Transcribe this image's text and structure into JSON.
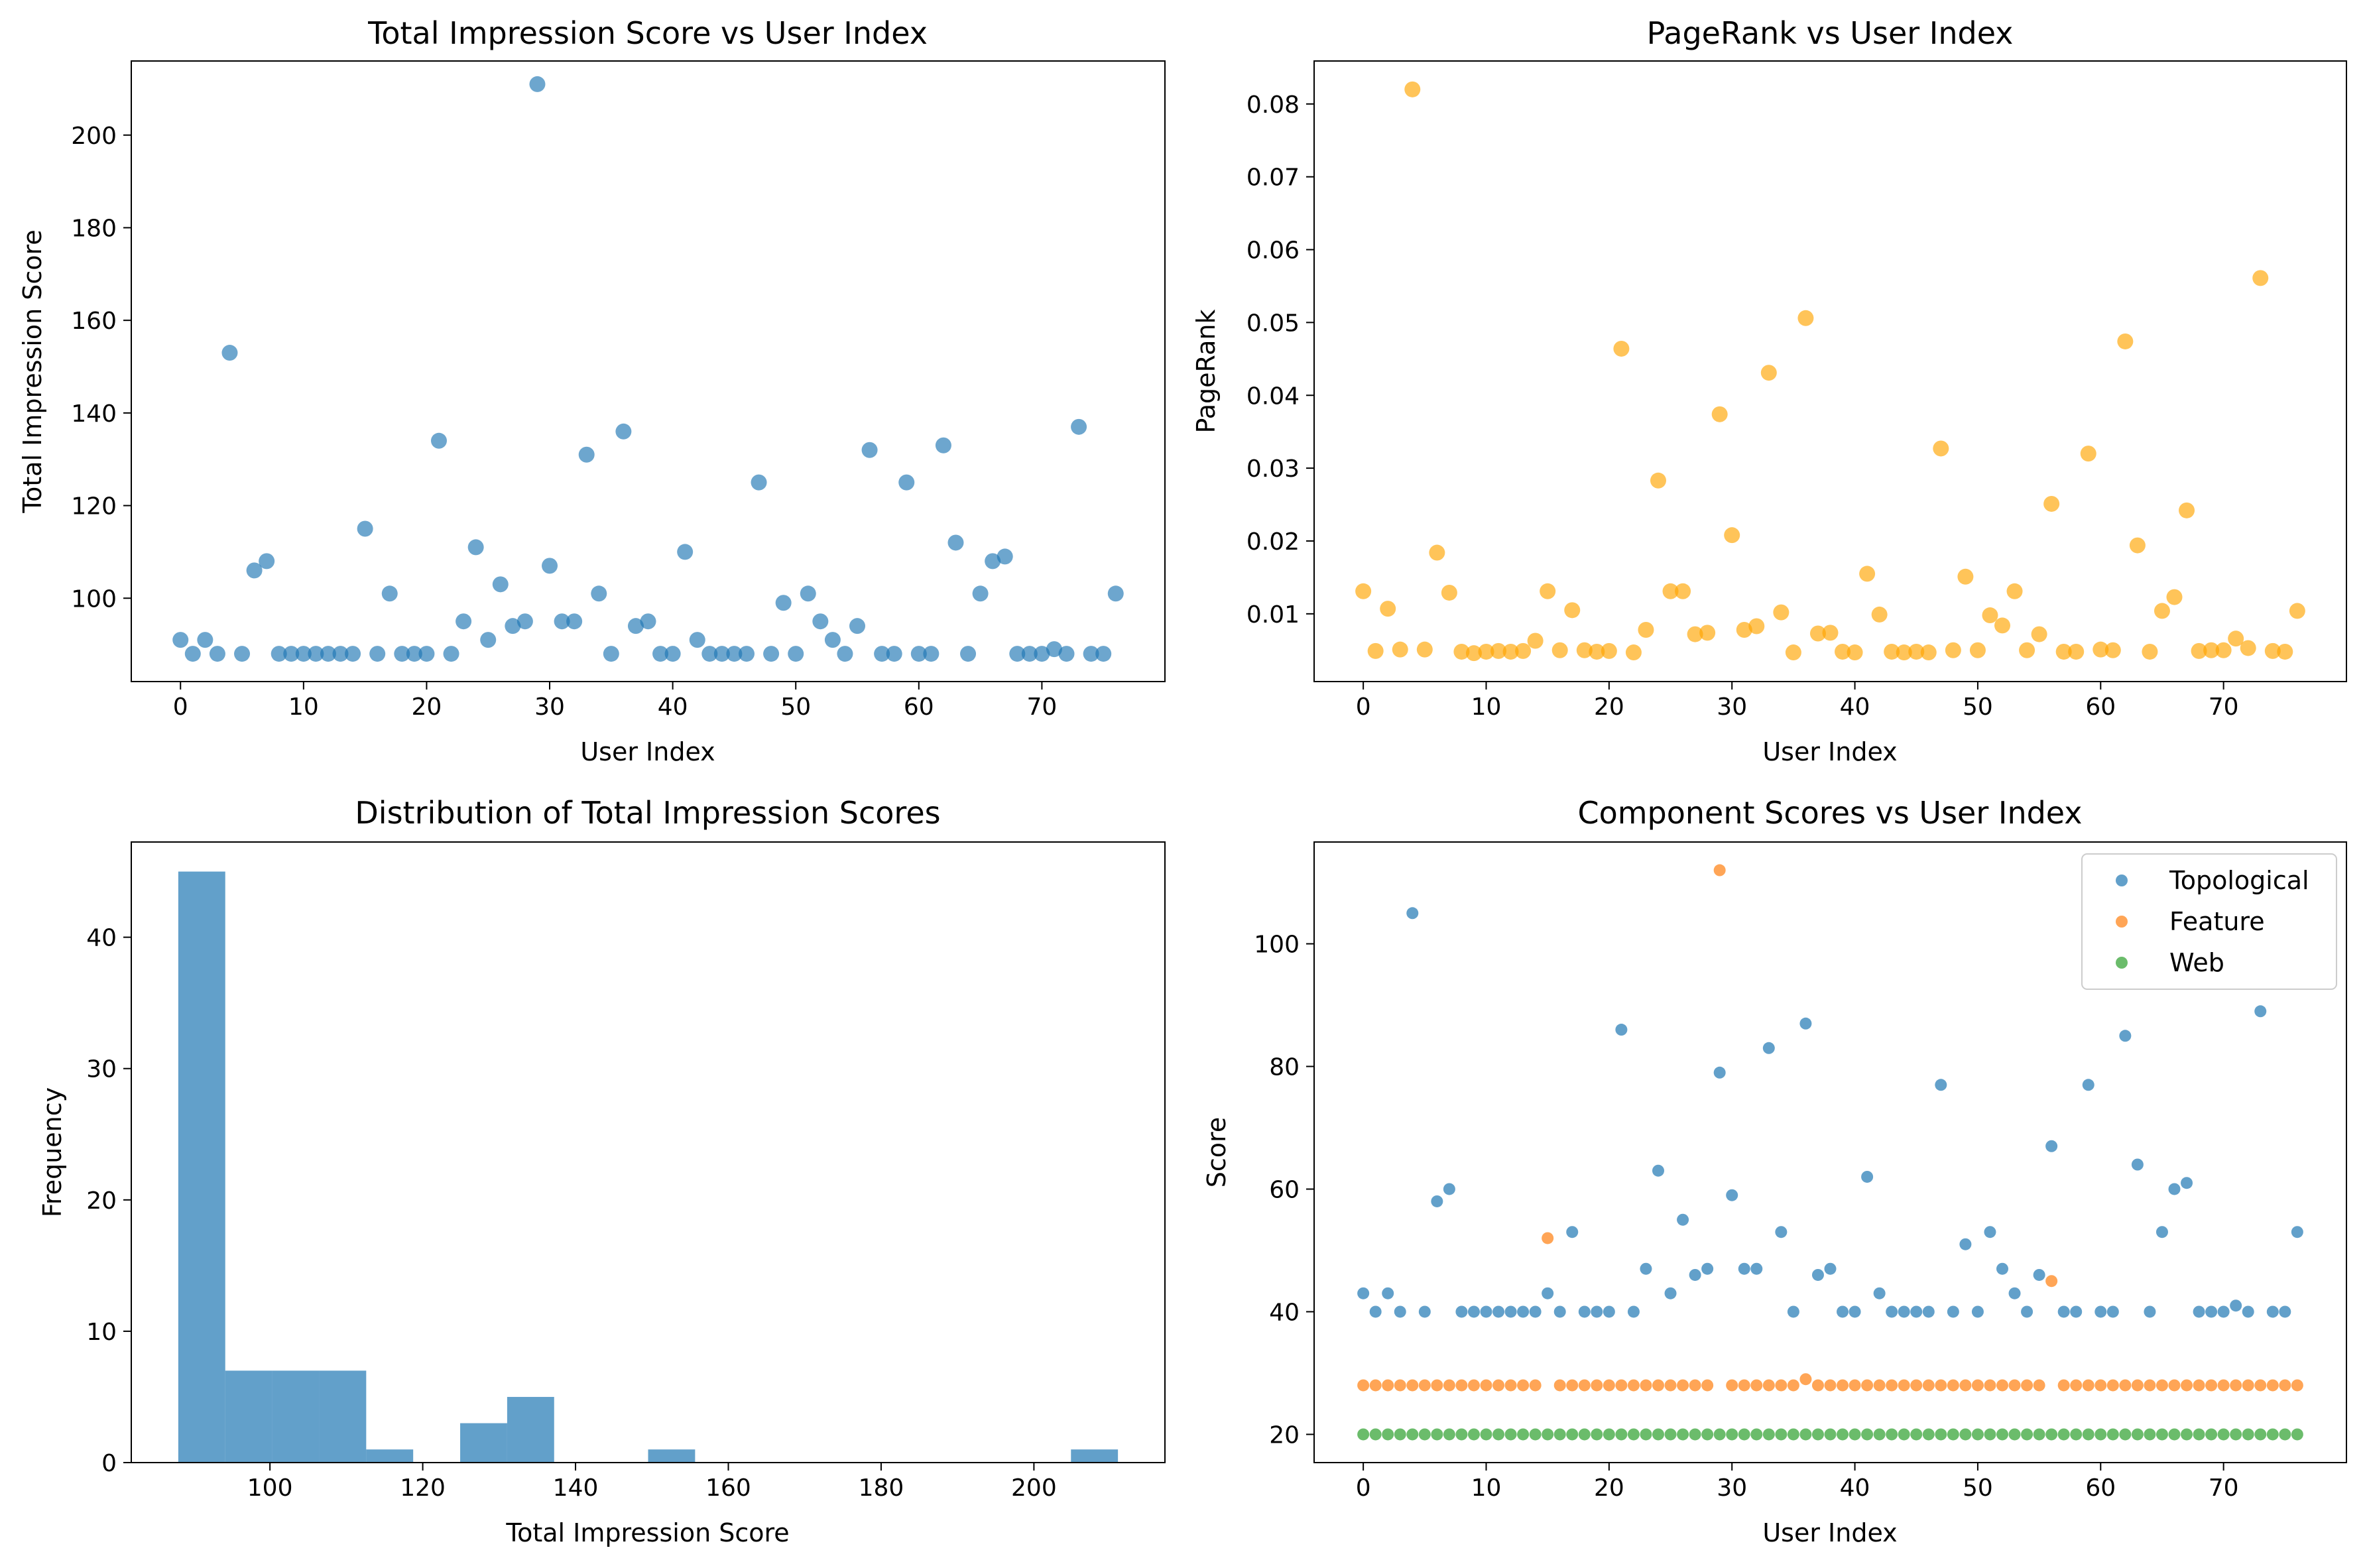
{
  "chart_data": [
    {
      "type": "scatter",
      "title": "Total Impression Score vs User Index",
      "xlabel": "User Index",
      "ylabel": "Total Impression Score",
      "xlim": [
        -4,
        80
      ],
      "ylim": [
        82,
        216
      ],
      "xticks": [
        0,
        10,
        20,
        30,
        40,
        50,
        60,
        70
      ],
      "yticks": [
        100,
        120,
        140,
        160,
        180,
        200
      ],
      "color": "#1f77b4",
      "x": [
        0,
        1,
        2,
        3,
        4,
        5,
        6,
        7,
        8,
        9,
        10,
        11,
        12,
        13,
        14,
        15,
        16,
        17,
        18,
        19,
        20,
        21,
        22,
        23,
        24,
        25,
        26,
        27,
        28,
        29,
        30,
        31,
        32,
        33,
        34,
        35,
        36,
        37,
        38,
        39,
        40,
        41,
        42,
        43,
        44,
        45,
        46,
        47,
        48,
        49,
        50,
        51,
        52,
        53,
        54,
        55,
        56,
        57,
        58,
        59,
        60,
        61,
        62,
        63,
        64,
        65,
        66,
        67,
        68,
        69,
        70,
        71,
        72,
        73,
        74,
        75,
        76
      ],
      "y": [
        91,
        88,
        91,
        88,
        153,
        88,
        106,
        108,
        88,
        88,
        88,
        88,
        88,
        88,
        88,
        115,
        88,
        101,
        88,
        88,
        88,
        134,
        88,
        95,
        111,
        91,
        103,
        94,
        95,
        211,
        107,
        95,
        95,
        131,
        101,
        88,
        136,
        94,
        95,
        88,
        88,
        110,
        91,
        88,
        88,
        88,
        88,
        125,
        88,
        99,
        88,
        101,
        95,
        91,
        88,
        94,
        132,
        88,
        88,
        125,
        88,
        88,
        133,
        112,
        88,
        101,
        108,
        109,
        88,
        88,
        88,
        89,
        88,
        137,
        88,
        88,
        101
      ]
    },
    {
      "type": "scatter",
      "title": "PageRank vs User Index",
      "xlabel": "User Index",
      "ylabel": "PageRank",
      "xlim": [
        -4,
        80
      ],
      "ylim": [
        0.0007,
        0.0859
      ],
      "xticks": [
        0,
        10,
        20,
        30,
        40,
        50,
        60,
        70
      ],
      "yticks": [
        0.01,
        0.02,
        0.03,
        0.04,
        0.05,
        0.06,
        0.07,
        0.08
      ],
      "ytick_labels": [
        "0.01",
        "0.02",
        "0.03",
        "0.04",
        "0.05",
        "0.06",
        "0.07",
        "0.08"
      ],
      "color": "#ffa500",
      "x": [
        0,
        1,
        2,
        3,
        4,
        5,
        6,
        7,
        8,
        9,
        10,
        11,
        12,
        13,
        14,
        15,
        16,
        17,
        18,
        19,
        20,
        21,
        22,
        23,
        24,
        25,
        26,
        27,
        28,
        29,
        30,
        31,
        32,
        33,
        34,
        35,
        36,
        37,
        38,
        39,
        40,
        41,
        42,
        43,
        44,
        45,
        46,
        47,
        48,
        49,
        50,
        51,
        52,
        53,
        54,
        55,
        56,
        57,
        58,
        59,
        60,
        61,
        62,
        63,
        64,
        65,
        66,
        67,
        68,
        69,
        70,
        71,
        72,
        73,
        74,
        75,
        76
      ],
      "y": [
        0.0131,
        0.0049,
        0.0107,
        0.0051,
        0.082,
        0.0051,
        0.0184,
        0.0129,
        0.0048,
        0.0046,
        0.0048,
        0.0049,
        0.0048,
        0.0049,
        0.0063,
        0.0131,
        0.005,
        0.0105,
        0.005,
        0.0048,
        0.0049,
        0.0464,
        0.0047,
        0.0078,
        0.0283,
        0.0131,
        0.0131,
        0.0072,
        0.0074,
        0.0374,
        0.0208,
        0.0078,
        0.0083,
        0.0431,
        0.0102,
        0.0047,
        0.0506,
        0.0073,
        0.0074,
        0.0048,
        0.0047,
        0.0155,
        0.0099,
        0.0048,
        0.0047,
        0.0048,
        0.0047,
        0.0327,
        0.005,
        0.0151,
        0.005,
        0.0098,
        0.0084,
        0.0131,
        0.005,
        0.0072,
        0.0251,
        0.0048,
        0.0048,
        0.032,
        0.0051,
        0.005,
        0.0474,
        0.0194,
        0.0048,
        0.0104,
        0.0123,
        0.0242,
        0.0049,
        0.005,
        0.005,
        0.0066,
        0.0053,
        0.0561,
        0.0049,
        0.0048,
        0.0104
      ]
    },
    {
      "type": "bar",
      "title": "Distribution of Total Impression Scores",
      "xlabel": "Total Impression Score",
      "ylabel": "Frequency",
      "xlim": [
        81.85,
        217.15
      ],
      "ylim": [
        0,
        47.25
      ],
      "xticks": [
        100,
        120,
        140,
        160,
        180,
        200
      ],
      "yticks": [
        0,
        10,
        20,
        30,
        40
      ],
      "color": "#1f77b4",
      "bin_edges": [
        88.0,
        94.15,
        100.3,
        106.45,
        112.6,
        118.75,
        124.9,
        131.05,
        137.2,
        143.35,
        149.5,
        155.65,
        161.8,
        167.95,
        174.1,
        180.25,
        186.4,
        192.55,
        198.7,
        204.85,
        211.0
      ],
      "values": [
        45,
        7,
        7,
        7,
        1,
        0,
        3,
        5,
        0,
        0,
        1,
        0,
        0,
        0,
        0,
        0,
        0,
        0,
        0,
        1
      ]
    },
    {
      "type": "scatter",
      "title": "Component Scores vs User Index",
      "xlabel": "User Index",
      "ylabel": "Score",
      "xlim": [
        -4,
        80
      ],
      "ylim": [
        15.4,
        116.6
      ],
      "xticks": [
        0,
        10,
        20,
        30,
        40,
        50,
        60,
        70
      ],
      "yticks": [
        20,
        40,
        60,
        80,
        100
      ],
      "legend_position": "upper right",
      "x": [
        0,
        1,
        2,
        3,
        4,
        5,
        6,
        7,
        8,
        9,
        10,
        11,
        12,
        13,
        14,
        15,
        16,
        17,
        18,
        19,
        20,
        21,
        22,
        23,
        24,
        25,
        26,
        27,
        28,
        29,
        30,
        31,
        32,
        33,
        34,
        35,
        36,
        37,
        38,
        39,
        40,
        41,
        42,
        43,
        44,
        45,
        46,
        47,
        48,
        49,
        50,
        51,
        52,
        53,
        54,
        55,
        56,
        57,
        58,
        59,
        60,
        61,
        62,
        63,
        64,
        65,
        66,
        67,
        68,
        69,
        70,
        71,
        72,
        73,
        74,
        75,
        76
      ],
      "series": [
        {
          "name": "Topological",
          "color": "#1f77b4",
          "values": [
            43,
            40,
            43,
            40,
            105,
            40,
            58,
            60,
            40,
            40,
            40,
            40,
            40,
            40,
            40,
            43,
            40,
            53,
            40,
            40,
            40,
            86,
            40,
            47,
            63,
            43,
            55,
            46,
            47,
            79,
            59,
            47,
            47,
            83,
            53,
            40,
            87,
            46,
            47,
            40,
            40,
            62,
            43,
            40,
            40,
            40,
            40,
            77,
            40,
            51,
            40,
            53,
            47,
            43,
            40,
            46,
            67,
            40,
            40,
            77,
            40,
            40,
            85,
            64,
            40,
            53,
            60,
            61,
            40,
            40,
            40,
            41,
            40,
            89,
            40,
            40,
            53
          ]
        },
        {
          "name": "Feature",
          "color": "#ff7f0e",
          "values": [
            28,
            28,
            28,
            28,
            28,
            28,
            28,
            28,
            28,
            28,
            28,
            28,
            28,
            28,
            28,
            52,
            28,
            28,
            28,
            28,
            28,
            28,
            28,
            28,
            28,
            28,
            28,
            28,
            28,
            112,
            28,
            28,
            28,
            28,
            28,
            28,
            29,
            28,
            28,
            28,
            28,
            28,
            28,
            28,
            28,
            28,
            28,
            28,
            28,
            28,
            28,
            28,
            28,
            28,
            28,
            28,
            45,
            28,
            28,
            28,
            28,
            28,
            28,
            28,
            28,
            28,
            28,
            28,
            28,
            28,
            28,
            28,
            28,
            28,
            28,
            28,
            28
          ]
        },
        {
          "name": "Web",
          "color": "#2ca02c",
          "values": [
            20,
            20,
            20,
            20,
            20,
            20,
            20,
            20,
            20,
            20,
            20,
            20,
            20,
            20,
            20,
            20,
            20,
            20,
            20,
            20,
            20,
            20,
            20,
            20,
            20,
            20,
            20,
            20,
            20,
            20,
            20,
            20,
            20,
            20,
            20,
            20,
            20,
            20,
            20,
            20,
            20,
            20,
            20,
            20,
            20,
            20,
            20,
            20,
            20,
            20,
            20,
            20,
            20,
            20,
            20,
            20,
            20,
            20,
            20,
            20,
            20,
            20,
            20,
            20,
            20,
            20,
            20,
            20,
            20,
            20,
            20,
            20,
            20,
            20,
            20,
            20,
            20
          ]
        }
      ]
    }
  ]
}
